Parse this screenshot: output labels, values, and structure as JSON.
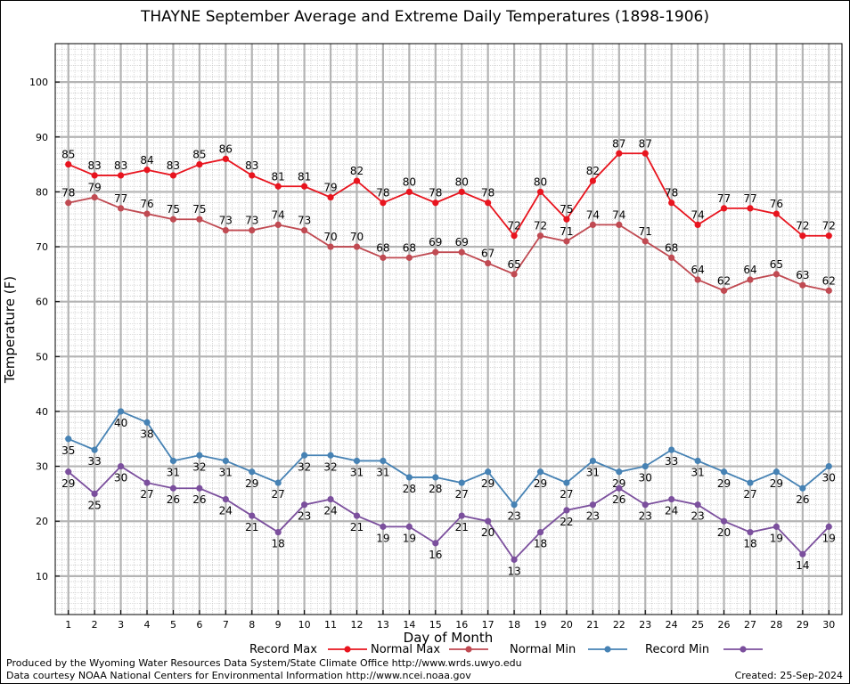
{
  "chart_data": {
    "type": "line",
    "title": "THAYNE September Average and Extreme Daily Temperatures (1898-1906)",
    "xlabel": "Day of Month",
    "ylabel": "Temperature (F)",
    "x": [
      1,
      2,
      3,
      4,
      5,
      6,
      7,
      8,
      9,
      10,
      11,
      12,
      13,
      14,
      15,
      16,
      17,
      18,
      19,
      20,
      21,
      22,
      23,
      24,
      25,
      26,
      27,
      28,
      29,
      30
    ],
    "xlim": [
      0.5,
      30.5
    ],
    "ylim": [
      3,
      107
    ],
    "y_ticks": [
      10,
      20,
      30,
      40,
      50,
      60,
      70,
      80,
      90,
      100
    ],
    "grid": true,
    "legend_position": "bottom",
    "series": [
      {
        "name": "Record Max",
        "color": "#e8141e",
        "label_pos": "above",
        "values": [
          85,
          83,
          83,
          84,
          83,
          85,
          86,
          83,
          81,
          81,
          79,
          82,
          78,
          80,
          78,
          80,
          78,
          72,
          80,
          75,
          82,
          87,
          87,
          78,
          74,
          77,
          77,
          76,
          72,
          72
        ]
      },
      {
        "name": "Normal Max",
        "color": "#c04a52",
        "label_pos": "above",
        "values": [
          78,
          79,
          77,
          76,
          75,
          75,
          73,
          73,
          74,
          73,
          70,
          70,
          68,
          68,
          69,
          69,
          67,
          65,
          72,
          71,
          74,
          74,
          71,
          68,
          64,
          62,
          64,
          65,
          63,
          62
        ]
      },
      {
        "name": "Normal Min",
        "color": "#4682b4",
        "label_pos": "mixed",
        "values": [
          35,
          33,
          40,
          38,
          31,
          32,
          31,
          29,
          27,
          32,
          32,
          31,
          31,
          28,
          28,
          27,
          29,
          23,
          29,
          27,
          31,
          29,
          30,
          33,
          31,
          29,
          27,
          29,
          26,
          30
        ]
      },
      {
        "name": "Record Min",
        "color": "#7b4f9d",
        "label_pos": "below",
        "values": [
          29,
          25,
          30,
          27,
          26,
          26,
          24,
          21,
          18,
          23,
          24,
          21,
          19,
          19,
          16,
          21,
          20,
          13,
          18,
          22,
          23,
          26,
          23,
          24,
          23,
          20,
          18,
          19,
          14,
          19
        ]
      }
    ]
  },
  "footer": {
    "produced_by": "Produced by the Wyoming Water Resources Data System/State Climate Office http://www.wrds.uwyo.edu",
    "courtesy": "Data courtesy NOAA National Centers for Environmental Information http://www.ncei.noaa.gov",
    "created": "Created: 25-Sep-2024"
  }
}
